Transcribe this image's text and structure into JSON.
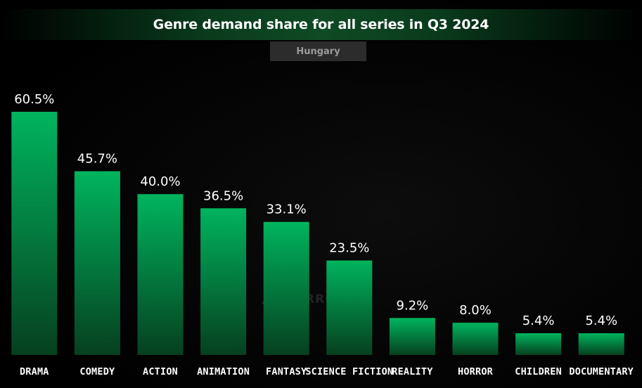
{
  "header": {
    "title": "Genre demand share for all series in Q3 2024",
    "region": "Hungary"
  },
  "watermark": {
    "brand": "PARROT"
  },
  "colors": {
    "bar_top": "#00b45e",
    "bar_bottom": "#06401f",
    "background": "#000000",
    "title_bar_accent": "#0f4a24"
  },
  "chart_data": {
    "type": "bar",
    "title": "Genre demand share for all series in Q3 2024",
    "subtitle": "Hungary",
    "categories": [
      "DRAMA",
      "COMEDY",
      "ACTION",
      "ANIMATION",
      "FANTASY",
      "SCIENCE FICTION",
      "REALITY",
      "HORROR",
      "CHILDREN",
      "DOCUMENTARY"
    ],
    "values": [
      60.5,
      45.7,
      40.0,
      36.5,
      33.1,
      23.5,
      9.2,
      8.0,
      5.4,
      5.4
    ],
    "value_labels": [
      "60.5%",
      "45.7%",
      "40.0%",
      "36.5%",
      "33.1%",
      "23.5%",
      "9.2%",
      "8.0%",
      "5.4%",
      "5.4%"
    ],
    "unit": "%",
    "xlabel": "",
    "ylabel": "",
    "ylim": [
      0,
      60.5
    ],
    "grid": false,
    "legend": "none"
  }
}
